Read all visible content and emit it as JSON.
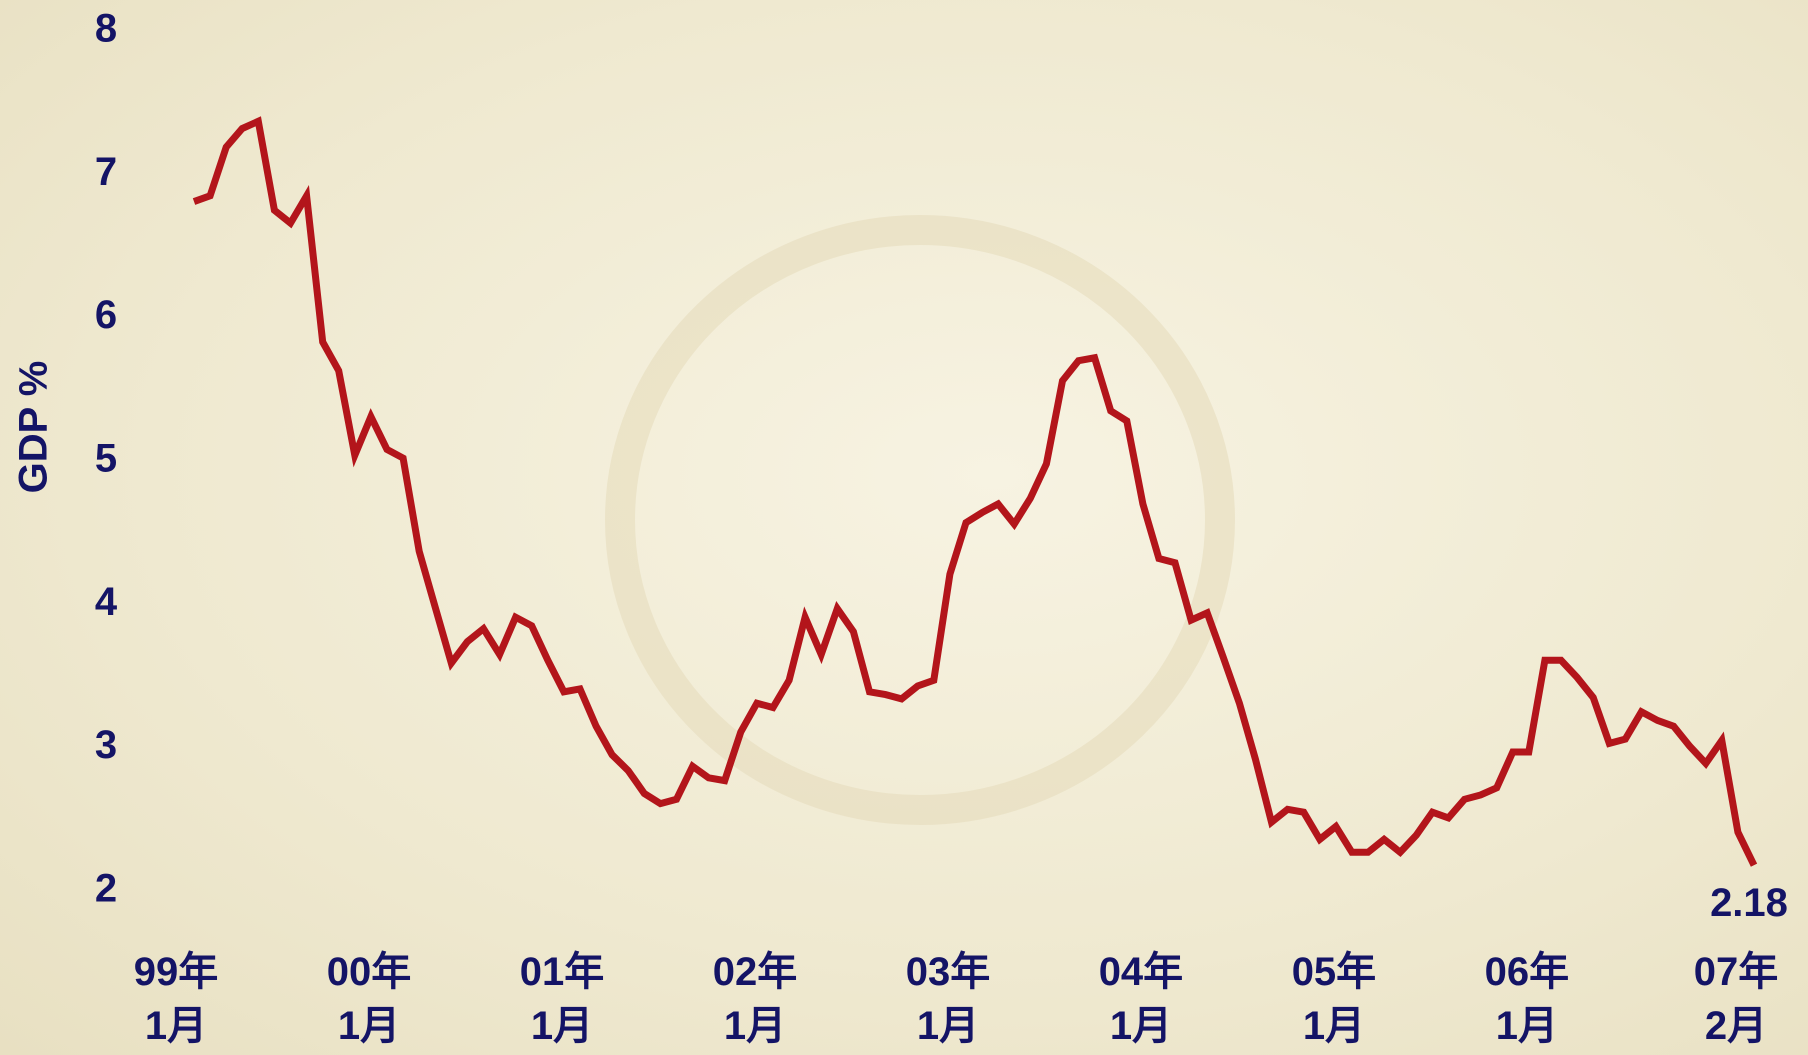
{
  "chart_data": {
    "type": "line",
    "y_label": "GDP %",
    "categories": [
      "99年 1月",
      null,
      null,
      null,
      null,
      null,
      null,
      null,
      null,
      null,
      null,
      null,
      "00年 1月",
      null,
      null,
      null,
      null,
      null,
      null,
      null,
      null,
      null,
      null,
      null,
      "01年 1月",
      null,
      null,
      null,
      null,
      null,
      null,
      null,
      null,
      null,
      null,
      null,
      "02年 1月",
      null,
      null,
      null,
      null,
      null,
      null,
      null,
      null,
      null,
      null,
      null,
      "03年 1月",
      null,
      null,
      null,
      null,
      null,
      null,
      null,
      null,
      null,
      null,
      null,
      "04年 1月",
      null,
      null,
      null,
      null,
      null,
      null,
      null,
      null,
      null,
      null,
      null,
      "05年 1月",
      null,
      null,
      null,
      null,
      null,
      null,
      null,
      null,
      null,
      null,
      null,
      "06年 1月",
      null,
      null,
      null,
      null,
      null,
      null,
      null,
      null,
      null,
      null,
      null,
      null,
      "07年 2月"
    ],
    "values": [
      6.81,
      6.85,
      7.19,
      7.32,
      7.37,
      6.75,
      6.66,
      6.85,
      5.83,
      5.63,
      5.04,
      5.31,
      5.08,
      5.02,
      4.37,
      3.98,
      3.59,
      3.74,
      3.83,
      3.65,
      3.91,
      3.85,
      3.61,
      3.39,
      3.41,
      3.15,
      2.95,
      2.84,
      2.68,
      2.61,
      2.64,
      2.87,
      2.79,
      2.77,
      3.11,
      3.31,
      3.28,
      3.47,
      3.91,
      3.65,
      3.97,
      3.81,
      3.39,
      3.37,
      3.34,
      3.43,
      3.47,
      4.21,
      4.57,
      4.64,
      4.7,
      4.56,
      4.74,
      4.98,
      5.56,
      5.7,
      5.72,
      5.35,
      5.28,
      4.7,
      4.32,
      4.29,
      3.89,
      3.94,
      3.63,
      3.31,
      2.92,
      2.48,
      2.57,
      2.55,
      2.36,
      2.45,
      2.27,
      2.27,
      2.36,
      2.27,
      2.39,
      2.55,
      2.51,
      2.64,
      2.67,
      2.72,
      2.97,
      2.97,
      3.61,
      3.61,
      3.49,
      3.35,
      3.03,
      3.06,
      3.25,
      3.19,
      3.15,
      3.01,
      2.89,
      3.05,
      2.41,
      2.18
    ],
    "color": "#b3151b",
    "ylim": [
      2,
      8
    ],
    "yticks": [
      2,
      3,
      4,
      5,
      6,
      7,
      8
    ],
    "grid": false
  }
}
